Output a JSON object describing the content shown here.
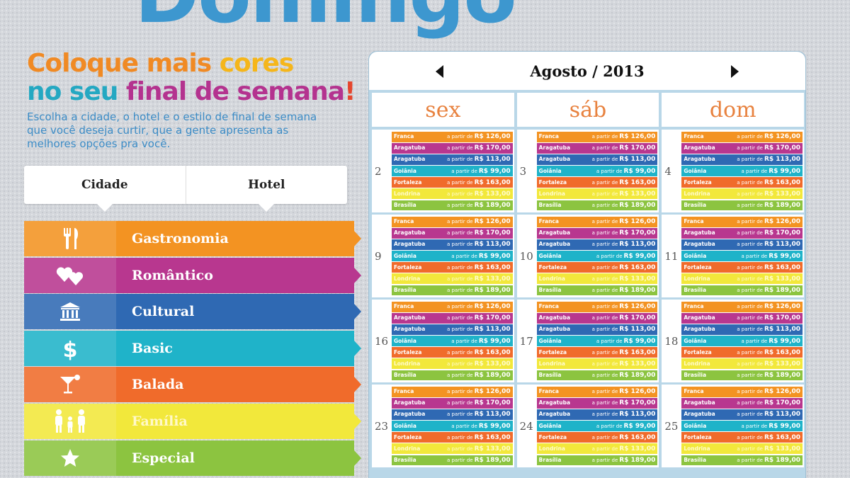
{
  "title": "Domingo",
  "headline": {
    "line1_a": "Coloque mais ",
    "line1_b": "cores",
    "line2_a": "no seu ",
    "line2_b": "final de semana",
    "line2_c": "!"
  },
  "intro": "Escolha a cidade, o hotel e o estilo de final de semana que você deseja curtir, que a gente apresenta as melhores opções pra você.",
  "selector": {
    "city_label": "Cidade",
    "hotel_label": "Hotel"
  },
  "styles": [
    {
      "label": "Gastronomia",
      "icon": "fork-knife-icon",
      "color": "#f39322"
    },
    {
      "label": "Romântico",
      "icon": "hearts-icon",
      "color": "#b8378f"
    },
    {
      "label": "Cultural",
      "icon": "museum-icon",
      "color": "#2f69b3"
    },
    {
      "label": "Basic",
      "icon": "dollar-icon",
      "color": "#1fb3c9"
    },
    {
      "label": "Balada",
      "icon": "cocktail-icon",
      "color": "#f06b2b"
    },
    {
      "label": "Família",
      "icon": "family-icon",
      "color": "#f2e83b"
    },
    {
      "label": "Especial",
      "icon": "star-icon",
      "color": "#8cc440"
    }
  ],
  "calendar": {
    "month": "Agosto / 2013",
    "days": [
      "sex",
      "sáb",
      "dom"
    ],
    "weeks": [
      [
        "2",
        "3",
        "4"
      ],
      [
        "9",
        "10",
        "11"
      ],
      [
        "16",
        "17",
        "18"
      ],
      [
        "23",
        "24",
        "25"
      ]
    ],
    "price_prefix": "a partir de",
    "offers": [
      {
        "city": "Franca",
        "price": "R$ 126,00",
        "color": "#f39322"
      },
      {
        "city": "Aragatuba",
        "price": "R$ 170,00",
        "color": "#b8378f"
      },
      {
        "city": "Aragatuba",
        "price": "R$ 113,00",
        "color": "#2f69b3"
      },
      {
        "city": "Goiânia",
        "price": "R$ 99,00",
        "color": "#1fb3c9"
      },
      {
        "city": "Fortaleza",
        "price": "R$ 163,00",
        "color": "#f06b2b"
      },
      {
        "city": "Londrina",
        "price": "R$ 133,00",
        "color": "#f2e83b"
      },
      {
        "city": "Brasília",
        "price": "R$ 189,00",
        "color": "#8cc440"
      }
    ]
  }
}
